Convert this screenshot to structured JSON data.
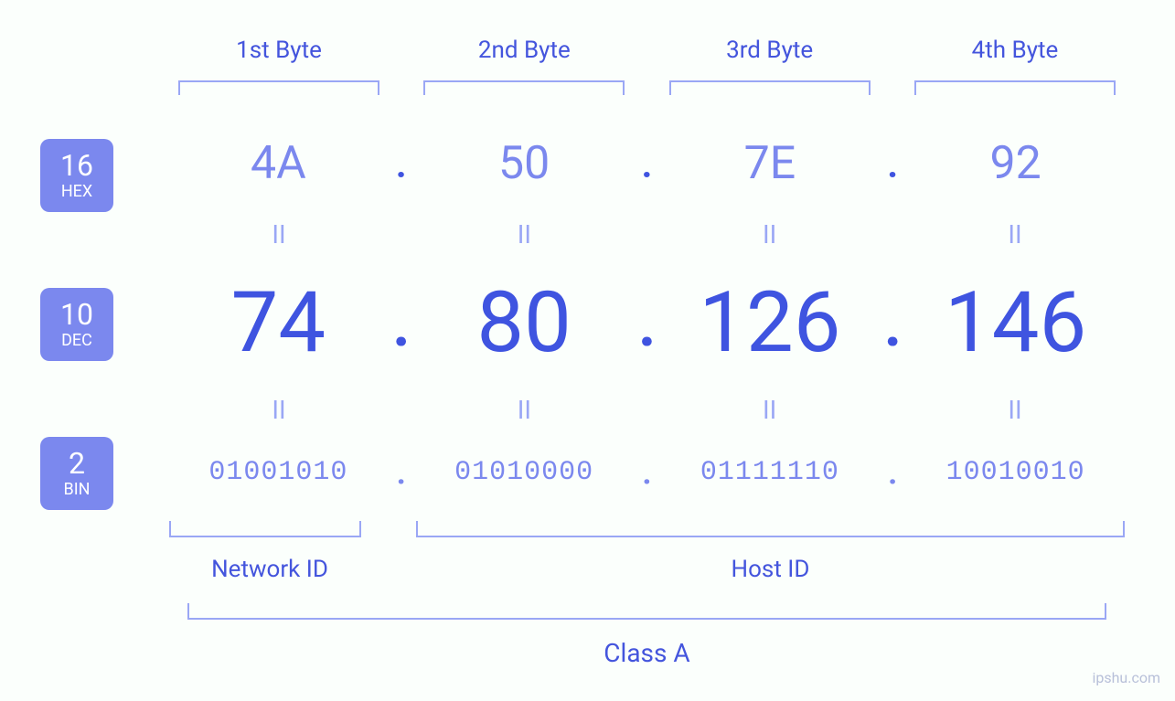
{
  "background_color": "#fbfffc",
  "colors": {
    "badge_bg": "#7b88ee",
    "badge_text": "#ffffff",
    "label_text": "#4455dd",
    "bracket": "#9aa7f5",
    "hex_text": "#7b88ee",
    "dec_text": "#3f54e0",
    "bin_text": "#7b88ee",
    "equals": "#9aa7f5",
    "watermark": "#b8c0d9"
  },
  "fonts": {
    "byte_label_size": 26,
    "badge_num_size": 32,
    "badge_name_size": 18,
    "hex_size": 50,
    "dec_size": 92,
    "bin_size": 30,
    "eq_size": 28,
    "id_label_size": 26,
    "class_label_size": 28,
    "watermark_size": 16
  },
  "byte_headers": [
    "1st Byte",
    "2nd Byte",
    "3rd Byte",
    "4th Byte"
  ],
  "bases": {
    "hex": {
      "num": "16",
      "name": "HEX"
    },
    "dec": {
      "num": "10",
      "name": "DEC"
    },
    "bin": {
      "num": "2",
      "name": "BIN"
    }
  },
  "separator": ".",
  "equals_symbol": "II",
  "octets": {
    "hex": [
      "4A",
      "50",
      "7E",
      "92"
    ],
    "dec": [
      "74",
      "80",
      "126",
      "146"
    ],
    "bin": [
      "01001010",
      "01010000",
      "01111110",
      "10010010"
    ]
  },
  "footer": {
    "network_id_label": "Network ID",
    "host_id_label": "Host ID",
    "class_label": "Class A"
  },
  "watermark": "ipshu.com"
}
